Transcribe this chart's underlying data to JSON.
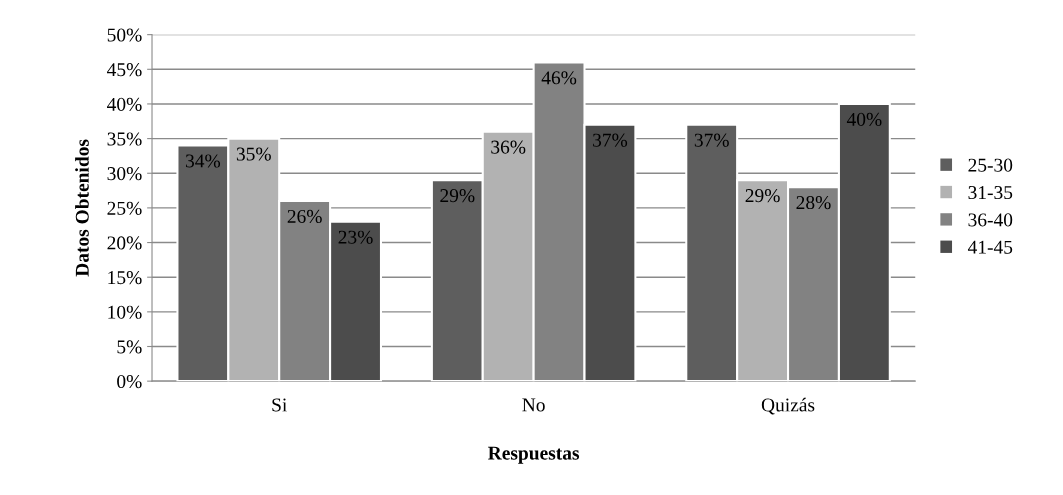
{
  "chart_data": {
    "type": "bar",
    "xlabel": "Respuestas",
    "ylabel": "Datos Obtenidos",
    "categories": [
      "Si",
      "No",
      "Quizás"
    ],
    "series": [
      {
        "name": "25-30",
        "color": "#5e5e5e",
        "values": [
          34,
          29,
          37
        ],
        "value_labels": [
          "34%",
          "29%",
          "37%"
        ]
      },
      {
        "name": "31-35",
        "color": "#b2b2b2",
        "values": [
          35,
          36,
          29
        ],
        "value_labels": [
          "35%",
          "36%",
          "29%"
        ]
      },
      {
        "name": "36-40",
        "color": "#828282",
        "values": [
          26,
          46,
          28
        ],
        "value_labels": [
          "26%",
          "46%",
          "28%"
        ]
      },
      {
        "name": "41-45",
        "color": "#4c4c4c",
        "values": [
          23,
          37,
          40
        ],
        "value_labels": [
          "23%",
          "37%",
          "40%"
        ]
      }
    ],
    "ylim": [
      0,
      50
    ],
    "yticks": [
      {
        "value": 0,
        "label": "0%"
      },
      {
        "value": 5,
        "label": "5%"
      },
      {
        "value": 10,
        "label": "10%"
      },
      {
        "value": 15,
        "label": "15%"
      },
      {
        "value": 20,
        "label": "20%"
      },
      {
        "value": 25,
        "label": "25%"
      },
      {
        "value": 30,
        "label": "30%"
      },
      {
        "value": 35,
        "label": "35%"
      },
      {
        "value": 40,
        "label": "40%"
      },
      {
        "value": 45,
        "label": "45%"
      },
      {
        "value": 50,
        "label": "50%"
      }
    ],
    "grid": "y",
    "legend": "right"
  }
}
